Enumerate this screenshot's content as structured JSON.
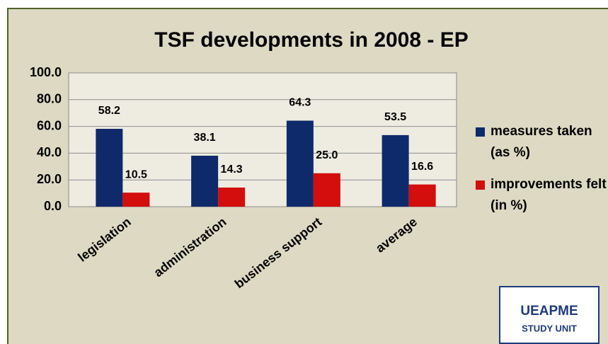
{
  "chart_data": {
    "type": "bar",
    "title": "TSF developments in 2008 - EP",
    "categories": [
      "legislation",
      "administration",
      "business support",
      "average"
    ],
    "series": [
      {
        "name": "measures taken (as %)",
        "color": "#0f2a6b",
        "values": [
          58.2,
          38.1,
          64.3,
          53.5
        ]
      },
      {
        "name": "improvements felt (in %)",
        "color": "#d40d0d",
        "values": [
          10.5,
          14.3,
          25,
          16.6
        ],
        "value_labels": [
          "10.5",
          "14.3",
          "25.0",
          "16.6"
        ]
      }
    ],
    "ylim": [
      0,
      100
    ],
    "yticks": [
      {
        "value": 0,
        "label": "0.0"
      },
      {
        "value": 20,
        "label": "20.0"
      },
      {
        "value": 40,
        "label": "40.0"
      },
      {
        "value": 60,
        "label": "60.0"
      },
      {
        "value": 80,
        "label": "80.0"
      },
      {
        "value": 100,
        "label": "100.0"
      }
    ],
    "grid": true,
    "legend": "right",
    "logo": {
      "line1": "UEAPME",
      "line2": "STUDY UNIT"
    }
  }
}
